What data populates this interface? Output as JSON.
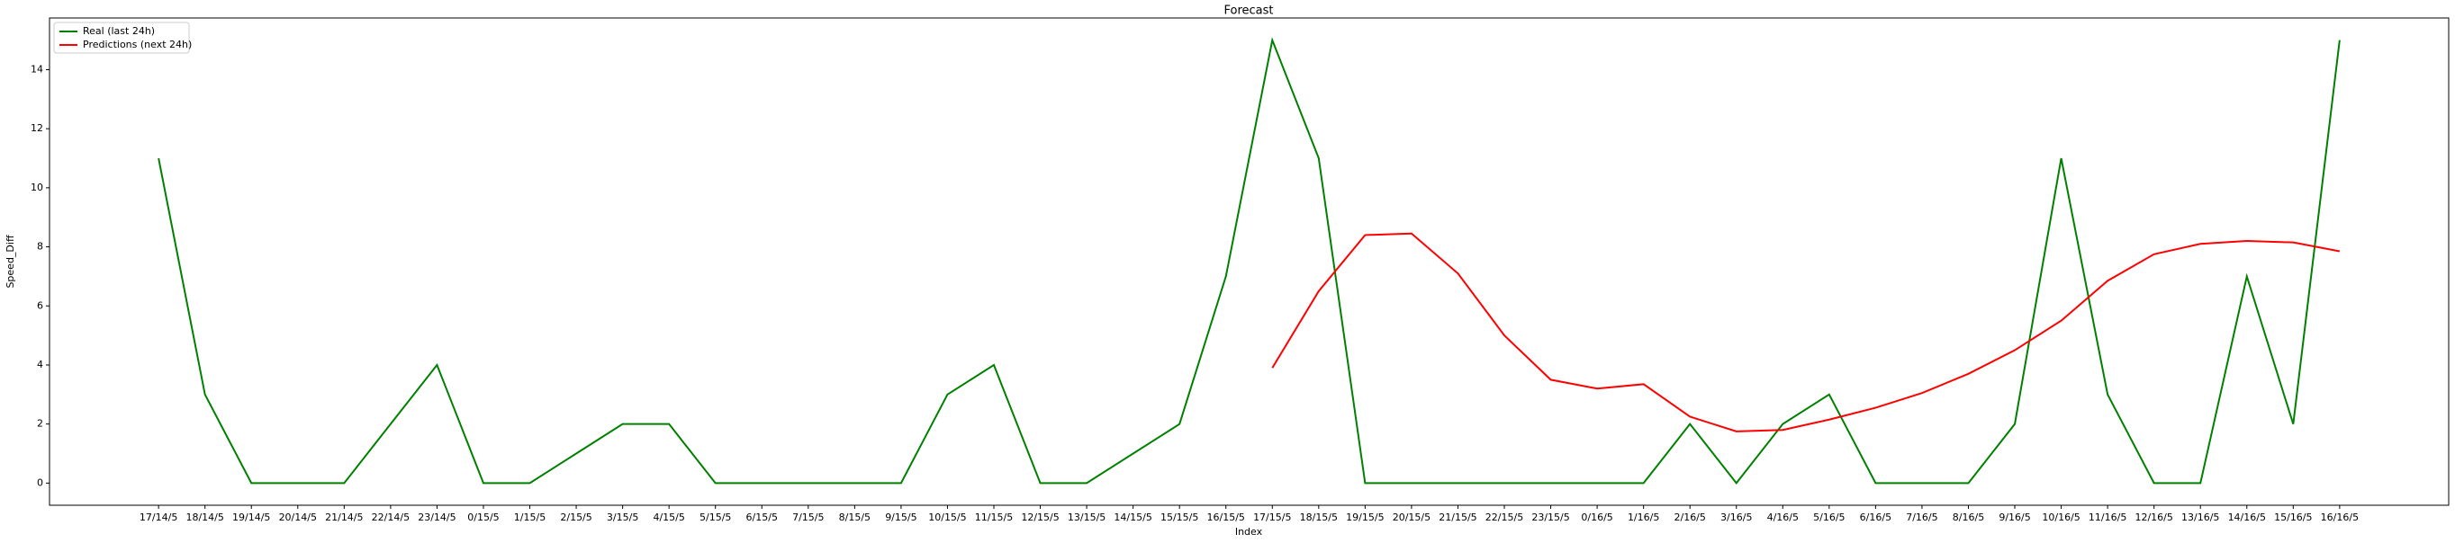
{
  "chart_data": {
    "type": "line",
    "title": "Forecast",
    "x_label": "Index",
    "y_label": "Speed_Diff",
    "categories": [
      "17/14/5",
      "18/14/5",
      "19/14/5",
      "20/14/5",
      "21/14/5",
      "22/14/5",
      "23/14/5",
      "0/15/5",
      "1/15/5",
      "2/15/5",
      "3/15/5",
      "4/15/5",
      "5/15/5",
      "6/15/5",
      "7/15/5",
      "8/15/5",
      "9/15/5",
      "10/15/5",
      "11/15/5",
      "12/15/5",
      "13/15/5",
      "14/15/5",
      "15/15/5",
      "16/15/5",
      "17/15/5",
      "18/15/5",
      "19/15/5",
      "20/15/5",
      "21/15/5",
      "22/15/5",
      "23/15/5",
      "0/16/5",
      "1/16/5",
      "2/16/5",
      "3/16/5",
      "4/16/5",
      "5/16/5",
      "6/16/5",
      "7/16/5",
      "8/16/5",
      "9/16/5",
      "10/16/5",
      "11/16/5",
      "12/16/5",
      "13/16/5",
      "14/16/5",
      "15/16/5",
      "16/16/5"
    ],
    "series": [
      {
        "name": "Real (last 24h)",
        "color": "green",
        "values": [
          11,
          3,
          0,
          0,
          0,
          2,
          4,
          0,
          0,
          1,
          2,
          2,
          0,
          0,
          0,
          0,
          0,
          3,
          4,
          0,
          0,
          1,
          2,
          7,
          15,
          11,
          0,
          0,
          0,
          0,
          0,
          0,
          0,
          2,
          0,
          2,
          3,
          0,
          0,
          0,
          2,
          11,
          3,
          0,
          0,
          7,
          2,
          15
        ]
      },
      {
        "name": "Predictions (next 24h)",
        "color": "red",
        "values": [
          null,
          null,
          null,
          null,
          null,
          null,
          null,
          null,
          null,
          null,
          null,
          null,
          null,
          null,
          null,
          null,
          null,
          null,
          null,
          null,
          null,
          null,
          null,
          null,
          3.9,
          6.5,
          8.4,
          8.45,
          7.1,
          5.0,
          3.5,
          3.2,
          3.35,
          2.25,
          1.75,
          1.8,
          2.15,
          2.55,
          3.05,
          3.7,
          4.5,
          5.5,
          6.85,
          7.75,
          8.1,
          8.2,
          8.15,
          7.85
        ]
      }
    ],
    "ylim": [
      -0.75,
      15.75
    ],
    "yticks": [
      0,
      2,
      4,
      6,
      8,
      10,
      12,
      14
    ],
    "legend": "upper left"
  }
}
